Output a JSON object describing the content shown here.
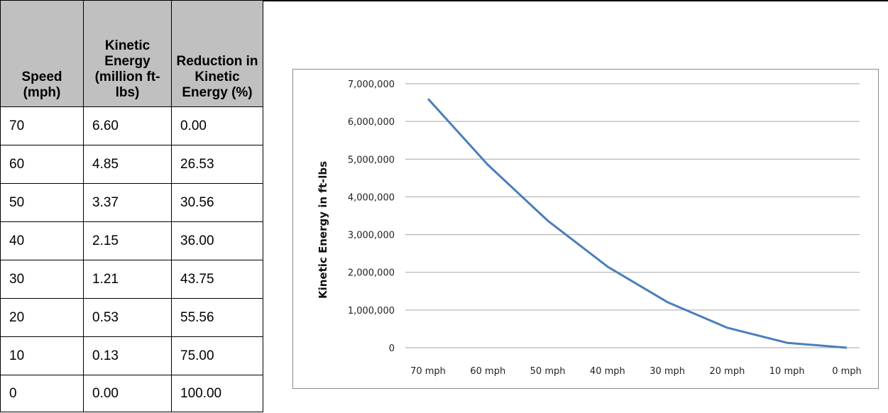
{
  "table": {
    "headers": [
      "Speed (mph)",
      "Kinetic Energy (million ft-lbs)",
      "Reduction in Kinetic Energy (%)"
    ],
    "rows": [
      [
        "70",
        "6.60",
        "0.00"
      ],
      [
        "60",
        "4.85",
        "26.53"
      ],
      [
        "50",
        "3.37",
        "30.56"
      ],
      [
        "40",
        "2.15",
        "36.00"
      ],
      [
        "30",
        "1.21",
        "43.75"
      ],
      [
        "20",
        "0.53",
        "55.56"
      ],
      [
        "10",
        "0.13",
        "75.00"
      ],
      [
        "0",
        "0.00",
        "100.00"
      ]
    ]
  },
  "chart_data": {
    "type": "line",
    "ylabel": "Kinetic Energy in ft-lbs",
    "xlabel": "",
    "title": "",
    "categories": [
      "70 mph",
      "60 mph",
      "50 mph",
      "40 mph",
      "30 mph",
      "20 mph",
      "10 mph",
      "0 mph"
    ],
    "series": [
      {
        "values": [
          6600000,
          4850000,
          3370000,
          2150000,
          1210000,
          530000,
          130000,
          0
        ]
      }
    ],
    "ylim": [
      0,
      7000000
    ],
    "yticks": [
      "7,000,000",
      "6,000,000",
      "5,000,000",
      "4,000,000",
      "3,000,000",
      "2,000,000",
      "1,000,000",
      "0"
    ],
    "ytick_values": [
      7000000,
      6000000,
      5000000,
      4000000,
      3000000,
      2000000,
      1000000,
      0
    ],
    "grid": true,
    "legend": "none",
    "line_color": "#4a7ebb",
    "grid_color": "#a6a6a6"
  }
}
